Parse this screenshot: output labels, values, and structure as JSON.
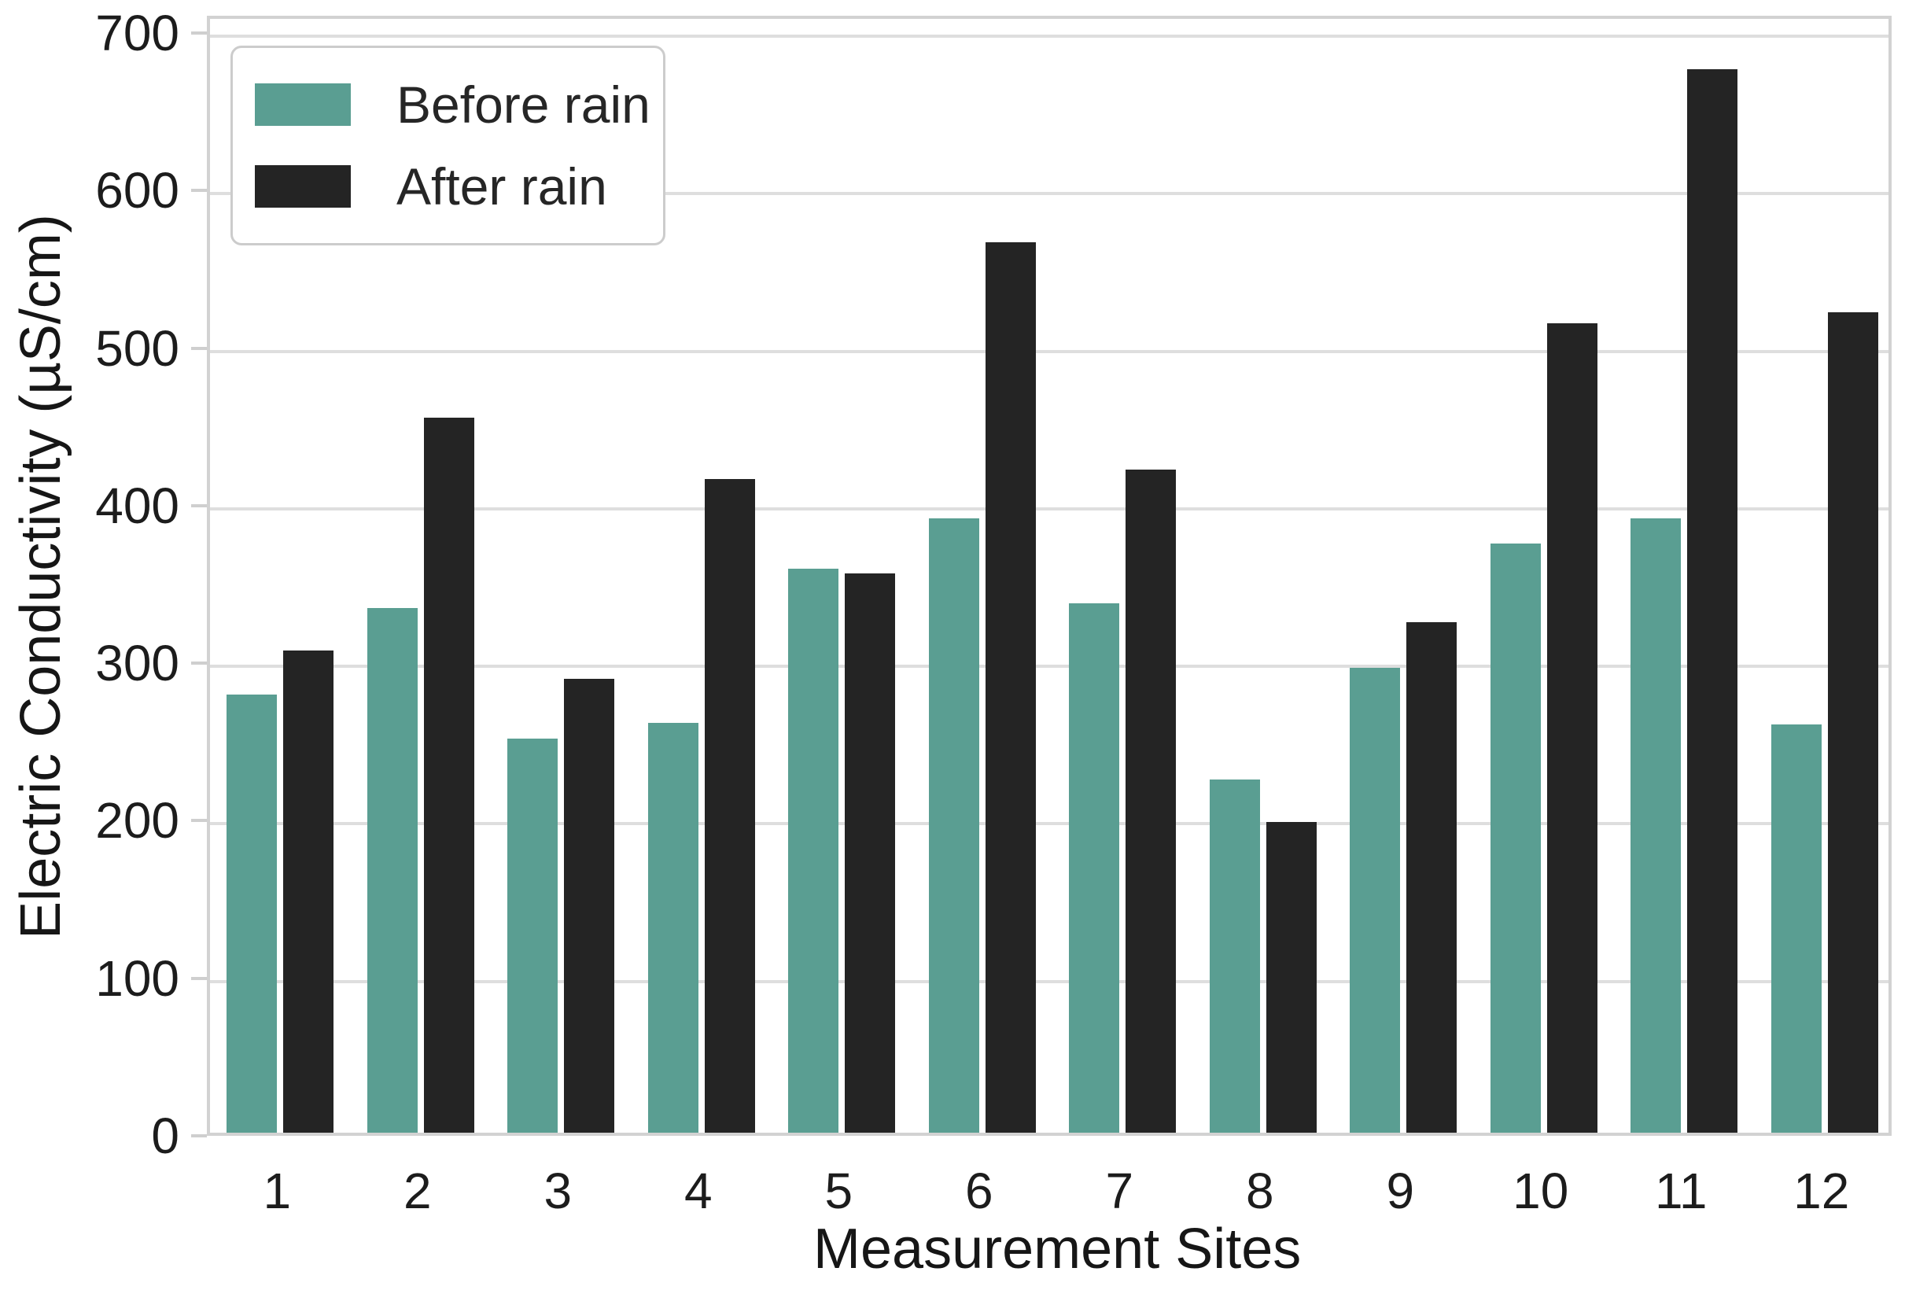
{
  "chart_data": {
    "type": "bar",
    "title": "",
    "xlabel": "Measurement Sites",
    "ylabel": "Electric Conductivity (µS/cm)",
    "categories": [
      "1",
      "2",
      "3",
      "4",
      "5",
      "6",
      "7",
      "8",
      "9",
      "10",
      "11",
      "12"
    ],
    "series": [
      {
        "name": "Before rain",
        "color": "#5a9e92",
        "values": [
          278,
          333,
          250,
          260,
          358,
          390,
          336,
          224,
          295,
          374,
          390,
          259
        ]
      },
      {
        "name": "After rain",
        "color": "#242424",
        "values": [
          306,
          454,
          288,
          415,
          355,
          565,
          421,
          197,
          324,
          514,
          675,
          521
        ]
      }
    ],
    "y_ticks": [
      0,
      100,
      200,
      300,
      400,
      500,
      600,
      700
    ],
    "ylim": [
      0,
      711
    ],
    "grid": true,
    "grid_axis": "y",
    "legend_position": "upper-left",
    "background": "#ffffff",
    "grid_color": "#dedede",
    "spine_color": "#d2d2d2",
    "text_color": "#1c1c1c"
  }
}
